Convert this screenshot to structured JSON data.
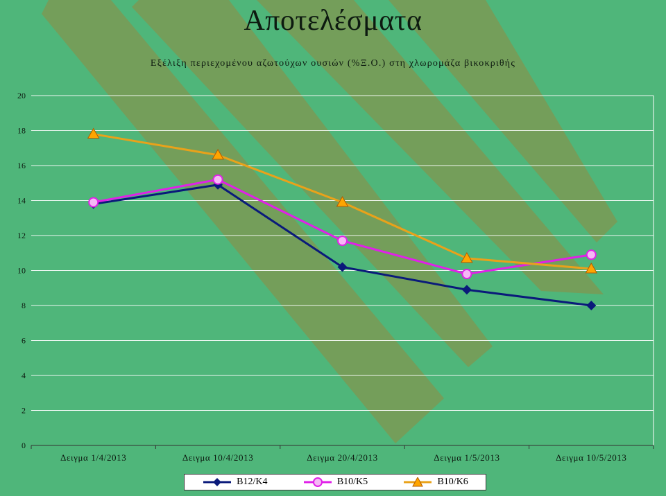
{
  "page": {
    "title": "Αποτελέσματα",
    "subtitle": "Εξέλιξη περιεχομένου αζωτούχων ουσιών (%Ξ.Ο.) στη χλωρομάζα βικοκριθής"
  },
  "chart_data": {
    "type": "line",
    "title": "Εξέλιξη περιεχομένου αζωτούχων ουσιών (%Ξ.Ο.) στη χλωρομάζα βικοκριθής",
    "categories": [
      "Δειγμα 1/4/2013",
      "Δειγμα 10/4/2013",
      "Δειγμα 20/4/2013",
      "Δειγμα 1/5/2013",
      "Δειγμα 10/5/2013"
    ],
    "ylim": [
      0,
      20
    ],
    "yticks": [
      0,
      2,
      4,
      6,
      8,
      10,
      12,
      14,
      16,
      18,
      20
    ],
    "grid": true,
    "legend_position": "bottom",
    "series": [
      {
        "name": "B12/K4",
        "values": [
          13.8,
          14.9,
          10.2,
          8.9,
          8.0
        ],
        "color": "#0a1a7a",
        "marker": "diamond"
      },
      {
        "name": "B10/K5",
        "values": [
          13.9,
          15.2,
          11.7,
          9.8,
          10.9
        ],
        "color": "#e020e8",
        "marker": "circle"
      },
      {
        "name": "B10/K6",
        "values": [
          17.8,
          16.6,
          13.9,
          10.7,
          10.1
        ],
        "color": "#e9a21a",
        "marker": "triangle"
      }
    ]
  }
}
